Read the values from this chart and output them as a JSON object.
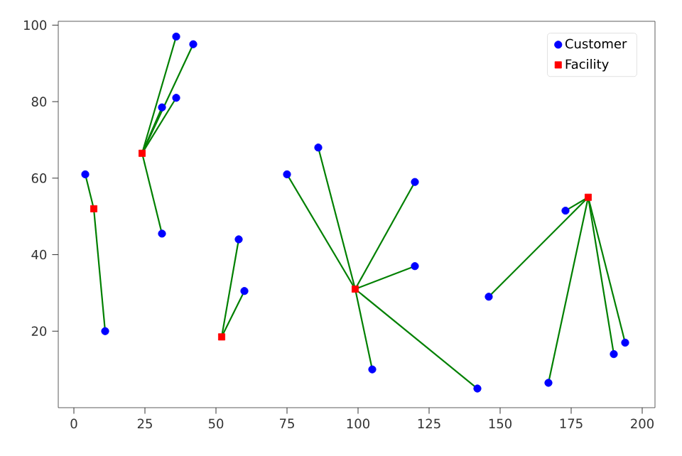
{
  "chart_data": {
    "type": "scatter",
    "xlim": [
      -5.5,
      204.5
    ],
    "ylim": [
      0,
      101
    ],
    "xticks": [
      0,
      25,
      50,
      75,
      100,
      125,
      150,
      175,
      200
    ],
    "yticks": [
      20,
      40,
      60,
      80,
      100
    ],
    "grid": false,
    "legend": "top right",
    "series": [
      {
        "type": "line",
        "color": "#008000",
        "x": [
          7,
          4
        ],
        "values": [
          52,
          61
        ]
      },
      {
        "type": "line",
        "color": "#008000",
        "x": [
          7,
          11
        ],
        "values": [
          52,
          20
        ]
      },
      {
        "type": "line",
        "color": "#008000",
        "x": [
          24,
          31
        ],
        "values": [
          66.5,
          78.5
        ]
      },
      {
        "type": "line",
        "color": "#008000",
        "x": [
          24,
          36
        ],
        "values": [
          66.5,
          97
        ]
      },
      {
        "type": "line",
        "color": "#008000",
        "x": [
          24,
          42
        ],
        "values": [
          66.5,
          95
        ]
      },
      {
        "type": "line",
        "color": "#008000",
        "x": [
          24,
          36
        ],
        "values": [
          66.5,
          81
        ]
      },
      {
        "type": "line",
        "color": "#008000",
        "x": [
          24,
          31
        ],
        "values": [
          66.5,
          45.5
        ]
      },
      {
        "type": "line",
        "color": "#008000",
        "x": [
          52,
          58
        ],
        "values": [
          18.5,
          44
        ]
      },
      {
        "type": "line",
        "color": "#008000",
        "x": [
          52,
          60
        ],
        "values": [
          18.5,
          30.5
        ]
      },
      {
        "type": "line",
        "color": "#008000",
        "x": [
          99,
          75
        ],
        "values": [
          31,
          61
        ]
      },
      {
        "type": "line",
        "color": "#008000",
        "x": [
          99,
          86
        ],
        "values": [
          31,
          68
        ]
      },
      {
        "type": "line",
        "color": "#008000",
        "x": [
          99,
          120
        ],
        "values": [
          31,
          59
        ]
      },
      {
        "type": "line",
        "color": "#008000",
        "x": [
          99,
          120
        ],
        "values": [
          31,
          37
        ]
      },
      {
        "type": "line",
        "color": "#008000",
        "x": [
          99,
          105
        ],
        "values": [
          31,
          10
        ]
      },
      {
        "type": "line",
        "color": "#008000",
        "x": [
          99,
          142
        ],
        "values": [
          31,
          5
        ]
      },
      {
        "type": "line",
        "color": "#008000",
        "x": [
          181,
          146
        ],
        "values": [
          55,
          29
        ]
      },
      {
        "type": "line",
        "color": "#008000",
        "x": [
          181,
          173
        ],
        "values": [
          55,
          51.5
        ]
      },
      {
        "type": "line",
        "color": "#008000",
        "x": [
          181,
          167
        ],
        "values": [
          55,
          6.5
        ]
      },
      {
        "type": "line",
        "color": "#008000",
        "x": [
          181,
          190
        ],
        "values": [
          55,
          14
        ]
      },
      {
        "type": "line",
        "color": "#008000",
        "x": [
          181,
          194
        ],
        "values": [
          55,
          17
        ]
      },
      {
        "name": "Customer",
        "color": "#0000ff",
        "marker": "circle",
        "x": [
          4,
          11,
          31,
          36,
          42,
          36,
          31,
          58,
          60,
          75,
          86,
          120,
          120,
          105,
          142,
          146,
          173,
          167,
          190,
          194
        ],
        "values": [
          61,
          20,
          78.5,
          97,
          95,
          81,
          45.5,
          44,
          30.5,
          61,
          68,
          59,
          37,
          10,
          5,
          29,
          51.5,
          6.5,
          14,
          17
        ]
      },
      {
        "name": "Facility",
        "color": "#ff0000",
        "marker": "square",
        "x": [
          7,
          24,
          52,
          99,
          181
        ],
        "values": [
          52,
          66.5,
          18.5,
          31,
          55
        ]
      }
    ]
  }
}
